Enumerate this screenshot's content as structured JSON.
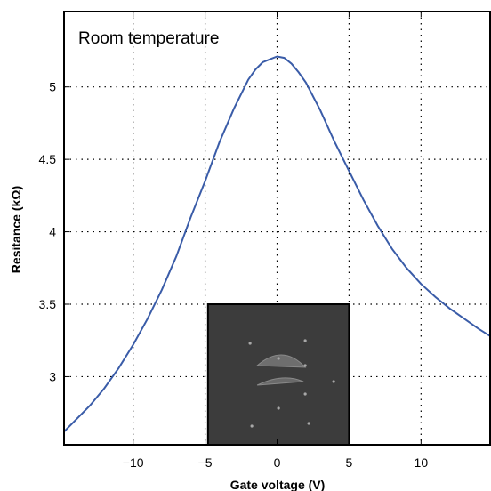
{
  "chart_data": {
    "type": "line",
    "xlabel": "Gate voltage (V)",
    "ylabel": "Resitance (kΩ)",
    "annotation": "Room temperature",
    "xlim": [
      -14.8,
      14.8
    ],
    "ylim": [
      2.53,
      5.52
    ],
    "x_ticks": [
      -10,
      -5,
      0,
      5,
      10
    ],
    "x_tick_labels": [
      "−10",
      "−5",
      "0",
      "5",
      "10"
    ],
    "y_ticks": [
      3,
      3.5,
      4,
      4.5,
      5
    ],
    "y_tick_labels": [
      "3",
      "3.5",
      "4",
      "4.5",
      "5"
    ],
    "grid": true,
    "legend": "none",
    "colors": {
      "line": "#3a5ca8",
      "inset_bg": "#3c3c3c"
    },
    "series": [
      {
        "x": [
          -14.8,
          -14,
          -13,
          -12,
          -11,
          -10,
          -9,
          -8,
          -7,
          -6,
          -5,
          -4,
          -3,
          -2,
          -1.5,
          -1,
          -0.5,
          0,
          0.5,
          1,
          1.5,
          2,
          3,
          4,
          5,
          6,
          7,
          8,
          9,
          10,
          11,
          12,
          13,
          14,
          14.8
        ],
        "y": [
          2.62,
          2.7,
          2.8,
          2.92,
          3.06,
          3.22,
          3.4,
          3.6,
          3.83,
          4.1,
          4.35,
          4.62,
          4.85,
          5.05,
          5.12,
          5.17,
          5.19,
          5.21,
          5.2,
          5.16,
          5.1,
          5.03,
          4.84,
          4.62,
          4.42,
          4.22,
          4.04,
          3.88,
          3.75,
          3.64,
          3.55,
          3.47,
          3.4,
          3.33,
          3.28
        ]
      }
    ],
    "inset": {
      "description_label": "",
      "x_range": [
        -4.8,
        5.0
      ],
      "y_range": [
        2.53,
        3.5
      ]
    }
  }
}
